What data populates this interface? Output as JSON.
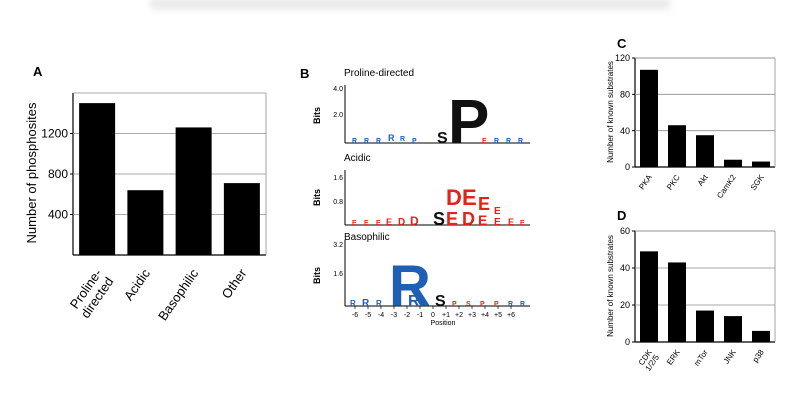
{
  "panels": {
    "A": {
      "letter": "A"
    },
    "B": {
      "letter": "B"
    },
    "C": {
      "letter": "C"
    },
    "D": {
      "letter": "D"
    }
  },
  "logos": {
    "ylabel": "Bits",
    "xlabel": "Position",
    "positions": [
      "-6",
      "-5",
      "-4",
      "-3",
      "-2",
      "-1",
      "0",
      "+1",
      "+2",
      "+3",
      "+4",
      "+5",
      "+6"
    ],
    "titles": [
      "Proline-directed",
      "Acidic",
      "Basophilic"
    ],
    "yticks": [
      [
        "4.0",
        "2.0"
      ],
      [
        "1.6",
        "0.8"
      ],
      [
        "3.2",
        "1.6"
      ]
    ]
  },
  "colors": {
    "bar": "#000000",
    "grid": "#8c8c8c",
    "logo_red": "#e2231a",
    "logo_blue": "#1f5fb4",
    "logo_black": "#111111"
  },
  "chart_data": [
    {
      "type": "bar",
      "panel": "A",
      "categories": [
        "Proline-directed",
        "Acidic",
        "Basophilic",
        "Other"
      ],
      "category_labels": [
        [
          "Proline-",
          "directed"
        ],
        [
          "Acidic"
        ],
        [
          "Basophilic"
        ],
        [
          "Other"
        ]
      ],
      "values": [
        1500,
        640,
        1260,
        710
      ],
      "ylabel": "Number of phosphosites",
      "yticks": [
        400,
        800,
        1200
      ],
      "ylim": [
        0,
        1600
      ],
      "grid": true
    },
    {
      "type": "bar",
      "panel": "C",
      "categories": [
        "PKA",
        "PKC",
        "Akt",
        "CamK2",
        "SGK"
      ],
      "values": [
        107,
        46,
        35,
        8,
        6
      ],
      "ylabel": "Number of known substrates",
      "yticks": [
        0,
        40,
        80,
        120
      ],
      "ylim": [
        0,
        120
      ],
      "grid": true
    },
    {
      "type": "bar",
      "panel": "D",
      "categories": [
        "CDK 1/2/5",
        "ERK",
        "mTor",
        "JNK",
        "p38"
      ],
      "category_labels": [
        [
          "CDK",
          "1/2/5"
        ],
        [
          "ERK"
        ],
        [
          "mTor"
        ],
        [
          "JNK"
        ],
        [
          "p38"
        ]
      ],
      "values": [
        49,
        43,
        17,
        14,
        6
      ],
      "ylabel": "Number of known substrates",
      "yticks": [
        0,
        20,
        40,
        60
      ],
      "ylim": [
        0,
        60
      ],
      "grid": true
    }
  ]
}
